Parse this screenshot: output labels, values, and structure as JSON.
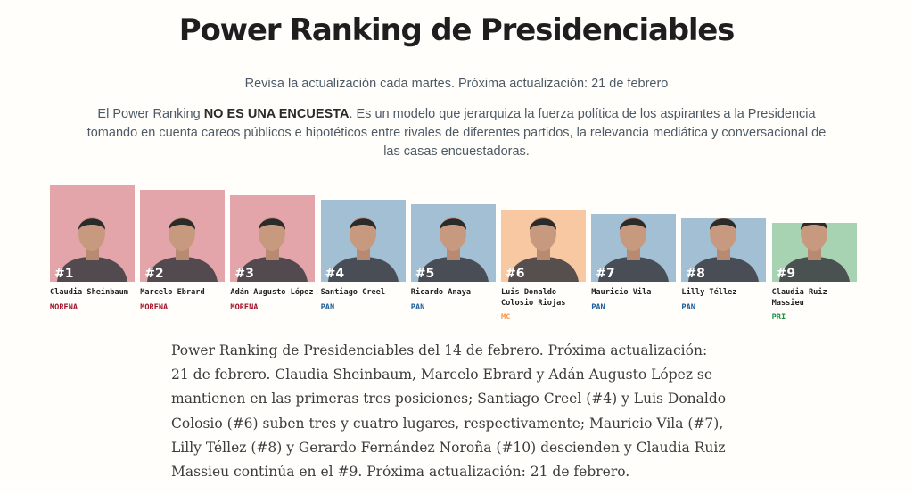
{
  "header": {
    "title": "Power Ranking de Presidenciables",
    "subtitle": "Revisa la actualización cada martes. Próxima actualización: 21 de febrero",
    "intro_before": "El Power Ranking ",
    "intro_bold": "NO ES UNA ENCUESTA",
    "intro_after": ". Es un modelo que jerarquiza la fuerza política de los aspirantes a la Presidencia tomando en cuenta careos públicos e hipotéticos entre rivales de diferentes partidos, la relevancia mediática y conversacional de las casas encuestadoras."
  },
  "colors": {
    "MORENA_bg": "#e3a5aa",
    "MORENA_text": "#a3142a",
    "PAN_bg": "#a2bfd4",
    "PAN_text": "#1f5e99",
    "MC_bg": "#f8c8a3",
    "MC_text": "#f39a4e",
    "PRI_bg": "#a8d3b2",
    "PRI_text": "#1f8f45"
  },
  "chart_data": {
    "type": "bar",
    "categories": [
      "Claudia Sheinbaum",
      "Marcelo Ebrard",
      "Adán Augusto López",
      "Santiago Creel",
      "Ricardo Anaya",
      "Luis Donaldo Colosio Riojas",
      "Mauricio Vila",
      "Lilly Téllez",
      "Claudia Ruiz Massieu"
    ],
    "ranks": [
      "#1",
      "#2",
      "#3",
      "#4",
      "#5",
      "#6",
      "#7",
      "#8",
      "#9"
    ],
    "parties": [
      "MORENA",
      "MORENA",
      "MORENA",
      "PAN",
      "PAN",
      "MC",
      "PAN",
      "PAN",
      "PRI"
    ],
    "values": [
      9,
      8,
      7,
      6,
      5,
      4,
      3,
      2,
      1
    ]
  },
  "summary": "Power Ranking de Presidenciables del 14 de febrero. Próxima actualización: 21 de febrero. Claudia Sheinbaum, Marcelo Ebrard y Adán Augusto López se mantienen en las primeras tres posiciones; Santiago Creel (#4) y Luis Donaldo Colosio (#6) suben tres y cuatro lugares, respectivamente; Mauricio Vila (#7), Lilly Téllez (#8) y Gerardo Fernández Noroña (#10) descienden y Claudia Ruiz Massieu continúa en el #9. Próxima actualización: 21 de febrero."
}
